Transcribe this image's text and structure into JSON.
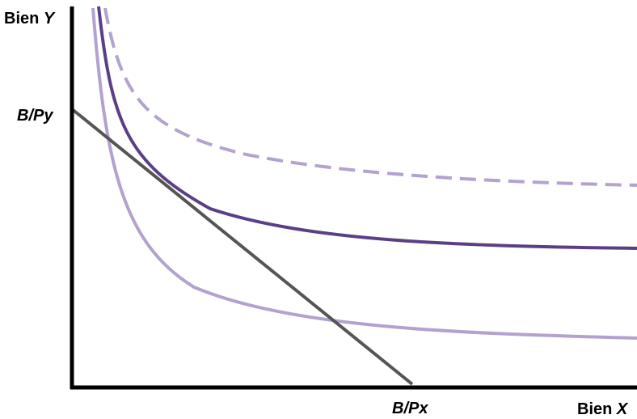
{
  "axes": {
    "y_label_prefix": "Bien",
    "y_label_var": "Y",
    "x_label_prefix": "Bien",
    "x_label_var": "X",
    "y_intercept_label": "B/Py",
    "x_intercept_label": "B/Px"
  },
  "colors": {
    "axis": "#000000",
    "budget_line": "#555555",
    "curve_low": "#b3a2cf",
    "curve_mid": "#5b3f86",
    "curve_high_dashed": "#b3a2cf"
  }
}
